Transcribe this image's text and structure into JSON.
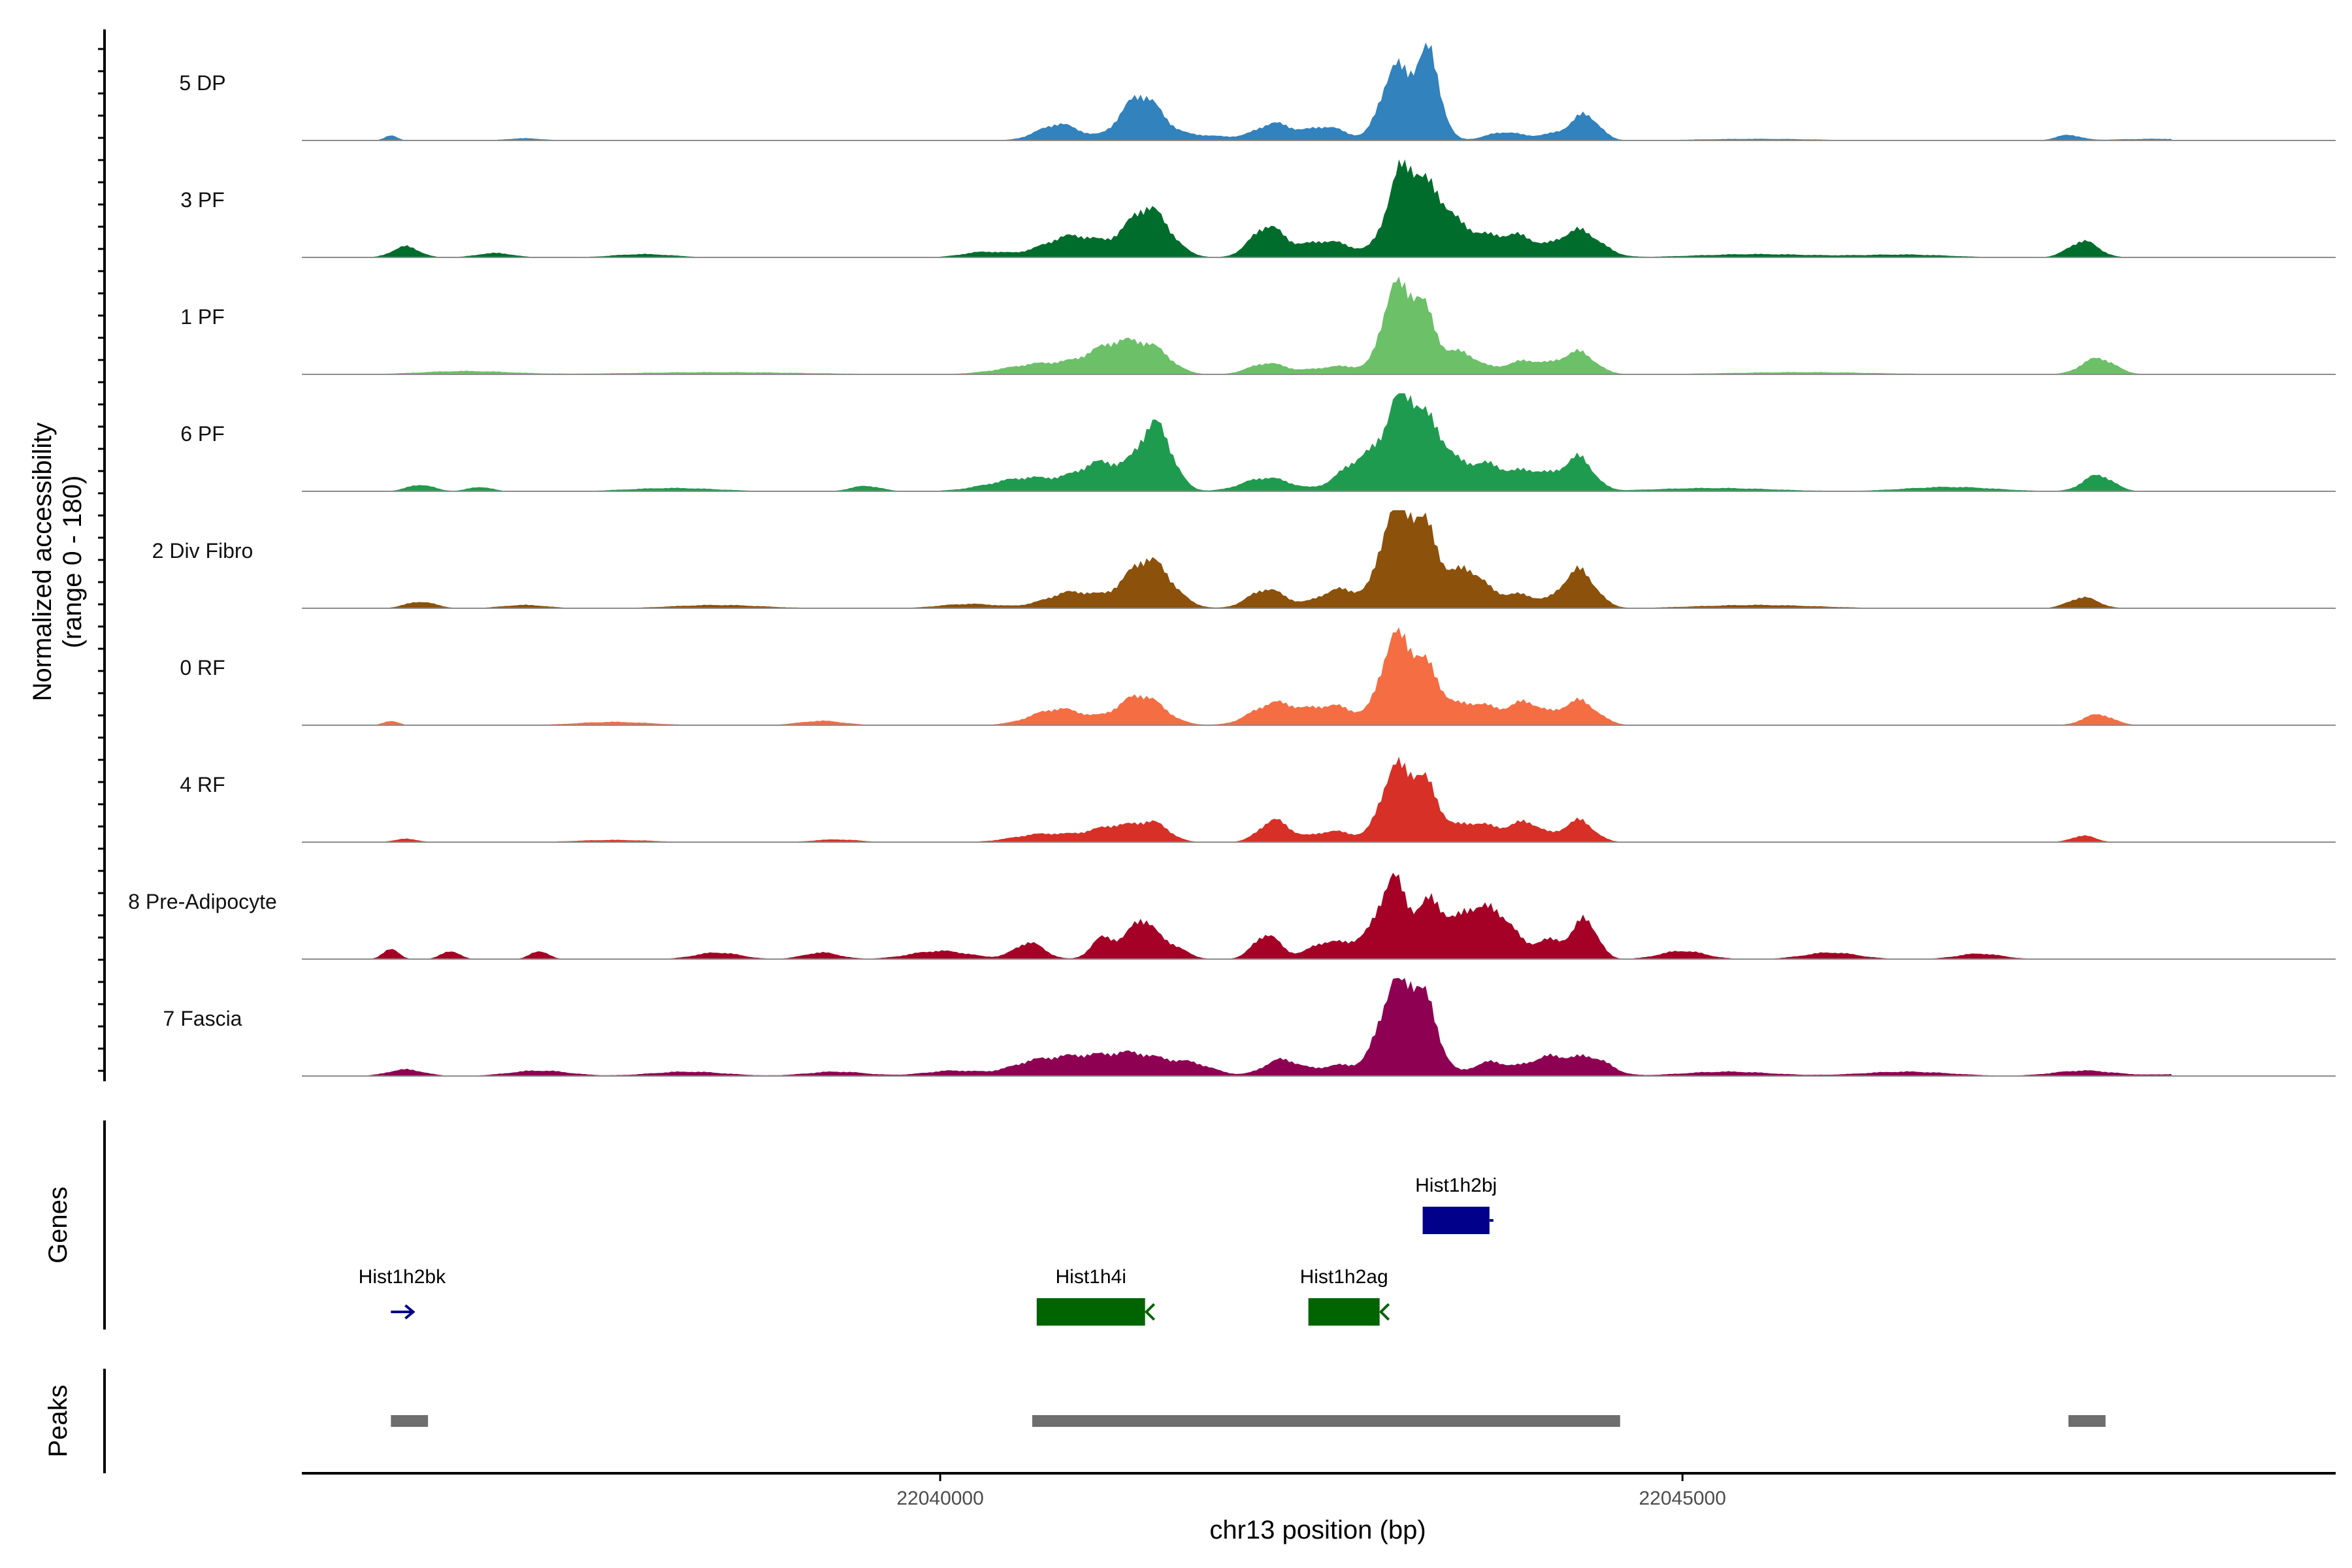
{
  "chart_data": {
    "type": "area",
    "title": "",
    "ylabel_line1": "Normalized accessibility",
    "ylabel_line2": "(range 0 - 180)",
    "ylim": [
      0,
      180
    ],
    "xlabel": "chr13 position (bp)",
    "xlim": [
      22035700,
      22049400
    ],
    "x_ticks": [
      {
        "value": 22040000,
        "label": "22040000"
      },
      {
        "value": 22045000,
        "label": "22045000"
      }
    ],
    "genes_label": "Genes",
    "peaks_label": "Peaks",
    "series": [
      {
        "name": "5 DP",
        "color": "#3182bd",
        "peaks": [
          [
            22036300,
            10,
            40
          ],
          [
            22037200,
            4,
            120
          ],
          [
            22040800,
            30,
            140
          ],
          [
            22041350,
            80,
            130
          ],
          [
            22041700,
            10,
            250
          ],
          [
            22042250,
            30,
            120
          ],
          [
            22042600,
            25,
            130
          ],
          [
            22043050,
            120,
            90
          ],
          [
            22043250,
            90,
            100
          ],
          [
            22043300,
            80,
            70
          ],
          [
            22043800,
            15,
            120
          ],
          [
            22044150,
            12,
            120
          ],
          [
            22044350,
            45,
            90
          ],
          [
            22045500,
            3,
            400
          ],
          [
            22047600,
            10,
            80
          ],
          [
            22048200,
            3,
            300
          ]
        ]
      },
      {
        "name": "3 PF",
        "color": "#006d2c",
        "peaks": [
          [
            22036400,
            20,
            90
          ],
          [
            22037000,
            8,
            120
          ],
          [
            22038000,
            6,
            200
          ],
          [
            22040300,
            10,
            150
          ],
          [
            22040900,
            40,
            200
          ],
          [
            22041400,
            90,
            140
          ],
          [
            22042200,
            55,
            110
          ],
          [
            22042600,
            30,
            180
          ],
          [
            22043100,
            130,
            100
          ],
          [
            22043300,
            110,
            130
          ],
          [
            22043600,
            40,
            150
          ],
          [
            22043900,
            35,
            120
          ],
          [
            22044300,
            50,
            140
          ],
          [
            22045500,
            6,
            400
          ],
          [
            22046500,
            5,
            300
          ],
          [
            22047700,
            30,
            100
          ]
        ]
      },
      {
        "name": "1 PF",
        "color": "#6cc068",
        "peaks": [
          [
            22036800,
            6,
            300
          ],
          [
            22038500,
            4,
            600
          ],
          [
            22040700,
            20,
            250
          ],
          [
            22041200,
            55,
            180
          ],
          [
            22041450,
            30,
            120
          ],
          [
            22042200,
            20,
            120
          ],
          [
            22042700,
            15,
            200
          ],
          [
            22043050,
            140,
            80
          ],
          [
            22043230,
            130,
            90
          ],
          [
            22043500,
            40,
            120
          ],
          [
            22043950,
            25,
            150
          ],
          [
            22044300,
            40,
            110
          ],
          [
            22045800,
            4,
            500
          ],
          [
            22047800,
            30,
            110
          ]
        ]
      },
      {
        "name": "6 PF",
        "color": "#1f9b4f",
        "peaks": [
          [
            22036500,
            12,
            90
          ],
          [
            22036900,
            8,
            80
          ],
          [
            22038200,
            6,
            300
          ],
          [
            22039500,
            10,
            100
          ],
          [
            22040600,
            25,
            250
          ],
          [
            22041100,
            50,
            160
          ],
          [
            22041450,
            120,
            110
          ],
          [
            22042200,
            25,
            160
          ],
          [
            22042850,
            60,
            150
          ],
          [
            22043100,
            140,
            100
          ],
          [
            22043300,
            110,
            120
          ],
          [
            22043650,
            50,
            150
          ],
          [
            22044000,
            35,
            130
          ],
          [
            22044300,
            60,
            100
          ],
          [
            22045200,
            6,
            400
          ],
          [
            22046800,
            8,
            300
          ],
          [
            22047800,
            30,
            100
          ]
        ]
      },
      {
        "name": "2 Div Fibro",
        "color": "#8c510a",
        "peaks": [
          [
            22036500,
            12,
            100
          ],
          [
            22037200,
            6,
            150
          ],
          [
            22038500,
            6,
            300
          ],
          [
            22040200,
            8,
            200
          ],
          [
            22040900,
            30,
            180
          ],
          [
            22041400,
            90,
            150
          ],
          [
            22042200,
            35,
            120
          ],
          [
            22042700,
            35,
            150
          ],
          [
            22043050,
            165,
            90
          ],
          [
            22043250,
            150,
            100
          ],
          [
            22043550,
            70,
            120
          ],
          [
            22043900,
            25,
            130
          ],
          [
            22044300,
            70,
            110
          ],
          [
            22045500,
            6,
            400
          ],
          [
            22047700,
            20,
            100
          ]
        ]
      },
      {
        "name": "0 RF",
        "color": "#f46d43",
        "peaks": [
          [
            22036300,
            8,
            50
          ],
          [
            22037800,
            6,
            250
          ],
          [
            22039200,
            8,
            150
          ],
          [
            22040800,
            30,
            180
          ],
          [
            22041350,
            55,
            150
          ],
          [
            22042250,
            40,
            150
          ],
          [
            22042650,
            35,
            160
          ],
          [
            22043050,
            140,
            90
          ],
          [
            22043250,
            110,
            110
          ],
          [
            22043600,
            40,
            150
          ],
          [
            22043950,
            40,
            110
          ],
          [
            22044300,
            45,
            120
          ],
          [
            22047800,
            20,
            100
          ]
        ]
      },
      {
        "name": "4 RF",
        "color": "#d73027",
        "peaks": [
          [
            22036400,
            6,
            80
          ],
          [
            22037800,
            4,
            250
          ],
          [
            22039300,
            5,
            150
          ],
          [
            22040700,
            15,
            200
          ],
          [
            22041200,
            30,
            180
          ],
          [
            22041450,
            25,
            100
          ],
          [
            22042250,
            40,
            100
          ],
          [
            22042650,
            20,
            150
          ],
          [
            22043050,
            120,
            90
          ],
          [
            22043250,
            110,
            100
          ],
          [
            22043600,
            35,
            150
          ],
          [
            22043950,
            35,
            110
          ],
          [
            22044300,
            40,
            100
          ],
          [
            22047700,
            12,
            80
          ]
        ]
      },
      {
        "name": "8 Pre-Adipocyte",
        "color": "#a50026",
        "peaks": [
          [
            22036300,
            20,
            50
          ],
          [
            22036700,
            15,
            60
          ],
          [
            22037300,
            15,
            60
          ],
          [
            22038500,
            12,
            150
          ],
          [
            22039200,
            12,
            120
          ],
          [
            22040000,
            15,
            200
          ],
          [
            22040600,
            30,
            100
          ],
          [
            22041100,
            40,
            80
          ],
          [
            22041350,
            70,
            90
          ],
          [
            22041550,
            25,
            100
          ],
          [
            22042200,
            45,
            90
          ],
          [
            22042600,
            30,
            120
          ],
          [
            22042900,
            40,
            120
          ],
          [
            22043050,
            125,
            80
          ],
          [
            22043300,
            105,
            110
          ],
          [
            22043600,
            90,
            110
          ],
          [
            22043800,
            60,
            90
          ],
          [
            22044100,
            35,
            120
          ],
          [
            22044350,
            70,
            80
          ],
          [
            22045000,
            15,
            150
          ],
          [
            22046000,
            12,
            180
          ],
          [
            22047000,
            10,
            150
          ]
        ]
      },
      {
        "name": "7 Fascia",
        "color": "#8e0152",
        "peaks": [
          [
            22036400,
            12,
            120
          ],
          [
            22037300,
            10,
            200
          ],
          [
            22038300,
            8,
            250
          ],
          [
            22039300,
            8,
            200
          ],
          [
            22040100,
            10,
            200
          ],
          [
            22040600,
            20,
            150
          ],
          [
            22040900,
            30,
            180
          ],
          [
            22041300,
            40,
            200
          ],
          [
            22041700,
            20,
            150
          ],
          [
            22042300,
            30,
            120
          ],
          [
            22042700,
            20,
            150
          ],
          [
            22043050,
            150,
            100
          ],
          [
            22043250,
            140,
            100
          ],
          [
            22043700,
            25,
            120
          ],
          [
            22044100,
            35,
            150
          ],
          [
            22044400,
            30,
            120
          ],
          [
            22045300,
            8,
            300
          ],
          [
            22046500,
            8,
            300
          ],
          [
            22047700,
            10,
            200
          ],
          [
            22048600,
            6,
            300
          ]
        ]
      }
    ],
    "genes": [
      {
        "name": "Hist1h2bj",
        "start": 22043250,
        "end": 22043700,
        "strand": "+",
        "row": 0,
        "color": "#00008b"
      },
      {
        "name": "Hist1h2bk",
        "start": 22036300,
        "end": 22036450,
        "strand": "+",
        "row": 1,
        "color": "#00008b"
      },
      {
        "name": "Hist1h4i",
        "start": 22040650,
        "end": 22041380,
        "strand": "-",
        "row": 1,
        "color": "#006400"
      },
      {
        "name": "Hist1h2ag",
        "start": 22042480,
        "end": 22042960,
        "strand": "-",
        "row": 1,
        "color": "#006400"
      }
    ],
    "peaks_regions": [
      {
        "start": 22036300,
        "end": 22036550
      },
      {
        "start": 22040620,
        "end": 22044580
      },
      {
        "start": 22047600,
        "end": 22047850
      }
    ]
  }
}
